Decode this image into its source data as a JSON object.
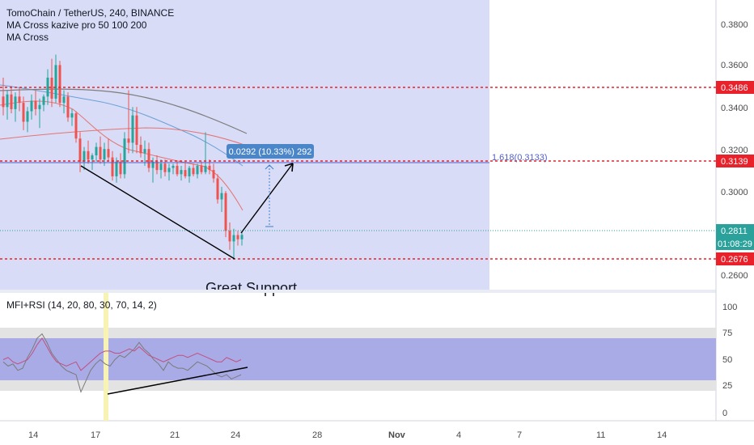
{
  "header": {
    "symbol_line": "TomoChain / TetherUS, 240, BINANCE",
    "indicator1": "MA Cross kazive pro 50 100 200",
    "indicator2": "MA Cross"
  },
  "lower_pane": {
    "title": "MFI+RSI (14, 20, 80, 30, 70, 14, 2)",
    "levels": [
      100,
      75,
      50,
      25,
      0
    ]
  },
  "colors": {
    "bull": "#26a69a",
    "bear": "#ef5350",
    "highlight": "#d8dcf7",
    "level_line": "#e8212b",
    "axis_tag": "#e8212b",
    "price_tag": "#2aa19a",
    "measure": "#3f7fc7"
  },
  "annotations": {
    "measure_label": "0.0292 (10.33%) 292",
    "fib_label": "1.618(0.3133)",
    "support_text": "Great Support"
  },
  "price_tags": {
    "current_price": "0.2811",
    "countdown": "01:08:29"
  },
  "chart_data": {
    "type": "candlestick",
    "title": "TomoChain / TetherUS, 240, BINANCE",
    "ylim": [
      0.255,
      0.393
    ],
    "y_ticks": [
      "0.3800",
      "0.3600",
      "0.3400",
      "0.3200",
      "0.3000",
      "0.2600"
    ],
    "x_ticks": [
      "14",
      "17",
      "21",
      "24",
      "28",
      "Nov",
      "4",
      "7",
      "11",
      "14"
    ],
    "horizontal_levels": [
      "0.3486",
      "0.3139",
      "0.2676"
    ],
    "candles": [
      [
        0.347,
        0.356,
        0.338,
        0.342
      ],
      [
        0.342,
        0.35,
        0.336,
        0.348
      ],
      [
        0.348,
        0.352,
        0.339,
        0.341
      ],
      [
        0.341,
        0.349,
        0.335,
        0.347
      ],
      [
        0.347,
        0.351,
        0.34,
        0.344
      ],
      [
        0.344,
        0.347,
        0.331,
        0.335
      ],
      [
        0.335,
        0.342,
        0.33,
        0.34
      ],
      [
        0.34,
        0.348,
        0.336,
        0.345
      ],
      [
        0.345,
        0.35,
        0.338,
        0.341
      ],
      [
        0.341,
        0.346,
        0.332,
        0.343
      ],
      [
        0.343,
        0.348,
        0.34,
        0.347
      ],
      [
        0.347,
        0.36,
        0.343,
        0.356
      ],
      [
        0.356,
        0.365,
        0.342,
        0.346
      ],
      [
        0.346,
        0.367,
        0.344,
        0.362
      ],
      [
        0.362,
        0.364,
        0.342,
        0.344
      ],
      [
        0.344,
        0.35,
        0.339,
        0.347
      ],
      [
        0.347,
        0.349,
        0.335,
        0.337
      ],
      [
        0.337,
        0.341,
        0.333,
        0.339
      ],
      [
        0.339,
        0.34,
        0.325,
        0.327
      ],
      [
        0.327,
        0.33,
        0.311,
        0.316
      ],
      [
        0.316,
        0.323,
        0.312,
        0.321
      ],
      [
        0.321,
        0.326,
        0.315,
        0.317
      ],
      [
        0.317,
        0.32,
        0.312,
        0.319
      ],
      [
        0.319,
        0.325,
        0.316,
        0.323
      ],
      [
        0.323,
        0.328,
        0.315,
        0.317
      ],
      [
        0.317,
        0.325,
        0.314,
        0.322
      ],
      [
        0.322,
        0.327,
        0.316,
        0.318
      ],
      [
        0.318,
        0.321,
        0.307,
        0.309
      ],
      [
        0.309,
        0.318,
        0.306,
        0.316
      ],
      [
        0.316,
        0.32,
        0.308,
        0.31
      ],
      [
        0.31,
        0.33,
        0.308,
        0.327
      ],
      [
        0.327,
        0.35,
        0.32,
        0.325
      ],
      [
        0.325,
        0.342,
        0.32,
        0.338
      ],
      [
        0.338,
        0.342,
        0.32,
        0.324
      ],
      [
        0.324,
        0.328,
        0.318,
        0.32
      ],
      [
        0.32,
        0.326,
        0.314,
        0.322
      ],
      [
        0.322,
        0.325,
        0.311,
        0.313
      ],
      [
        0.313,
        0.318,
        0.306,
        0.316
      ],
      [
        0.316,
        0.319,
        0.31,
        0.312
      ],
      [
        0.312,
        0.317,
        0.308,
        0.315
      ],
      [
        0.315,
        0.317,
        0.309,
        0.311
      ],
      [
        0.311,
        0.315,
        0.307,
        0.313
      ],
      [
        0.313,
        0.315,
        0.31,
        0.314
      ],
      [
        0.314,
        0.316,
        0.309,
        0.31
      ],
      [
        0.31,
        0.314,
        0.307,
        0.312
      ],
      [
        0.312,
        0.316,
        0.308,
        0.309
      ],
      [
        0.309,
        0.314,
        0.306,
        0.313
      ],
      [
        0.313,
        0.315,
        0.309,
        0.31
      ],
      [
        0.31,
        0.315,
        0.308,
        0.314
      ],
      [
        0.314,
        0.316,
        0.31,
        0.311
      ],
      [
        0.311,
        0.33,
        0.31,
        0.314
      ],
      [
        0.314,
        0.317,
        0.31,
        0.312
      ],
      [
        0.312,
        0.315,
        0.306,
        0.308
      ],
      [
        0.308,
        0.31,
        0.296,
        0.298
      ],
      [
        0.298,
        0.304,
        0.292,
        0.301
      ],
      [
        0.301,
        0.302,
        0.28,
        0.283
      ],
      [
        0.283,
        0.287,
        0.274,
        0.278
      ],
      [
        0.278,
        0.284,
        0.27,
        0.281
      ],
      [
        0.281,
        0.283,
        0.276,
        0.279
      ],
      [
        0.279,
        0.283,
        0.276,
        0.2811
      ]
    ],
    "mfi": [
      48,
      44,
      46,
      40,
      42,
      52,
      60,
      70,
      74,
      66,
      56,
      50,
      44,
      40,
      38,
      36,
      20,
      30,
      40,
      46,
      50,
      46,
      44,
      50,
      54,
      52,
      56,
      60,
      66,
      60,
      56,
      50,
      46,
      40,
      48,
      44,
      42,
      42,
      40,
      44,
      48,
      46,
      44,
      40,
      36,
      34,
      36,
      32,
      34,
      36
    ],
    "rsi": [
      50,
      52,
      48,
      46,
      48,
      50,
      56,
      64,
      70,
      62,
      54,
      48,
      46,
      44,
      46,
      48,
      40,
      44,
      48,
      52,
      56,
      58,
      58,
      56,
      56,
      58,
      60,
      58,
      62,
      58,
      54,
      52,
      50,
      48,
      50,
      52,
      54,
      54,
      52,
      54,
      56,
      54,
      52,
      50,
      48,
      48,
      52,
      50,
      48,
      50
    ]
  }
}
